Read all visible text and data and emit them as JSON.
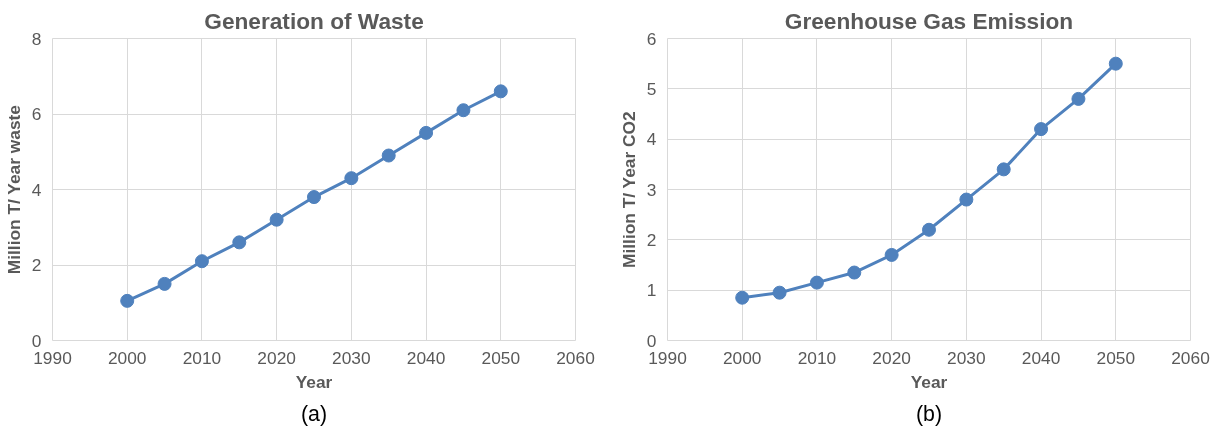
{
  "chart_data": [
    {
      "type": "line",
      "title": "Generation of Waste",
      "xlabel": "Year",
      "ylabel": "Million T/ Year waste",
      "x": [
        2000,
        2005,
        2010,
        2015,
        2020,
        2025,
        2030,
        2035,
        2040,
        2045,
        2050
      ],
      "series": [
        {
          "color": "#4f81bd",
          "values": [
            1.05,
            1.5,
            2.1,
            2.6,
            3.2,
            3.8,
            4.3,
            4.9,
            5.5,
            6.1,
            6.6
          ]
        }
      ],
      "xlim": [
        1990,
        2060
      ],
      "xticks": [
        1990,
        2000,
        2010,
        2020,
        2030,
        2040,
        2050,
        2060
      ],
      "ylim": [
        0,
        8
      ],
      "yticks": [
        0,
        2,
        4,
        6,
        8
      ],
      "grid": true,
      "marker": "circle",
      "line_style": "solid",
      "annotations": [
        "(a)"
      ]
    },
    {
      "type": "line",
      "title": "Greenhouse Gas Emission",
      "xlabel": "Year",
      "ylabel": "Million T/ Year CO2",
      "x": [
        2000,
        2005,
        2010,
        2015,
        2020,
        2025,
        2030,
        2035,
        2040,
        2045,
        2050
      ],
      "series": [
        {
          "color": "#4f81bd",
          "values": [
            0.85,
            0.95,
            1.15,
            1.35,
            1.7,
            2.2,
            2.8,
            3.4,
            4.2,
            4.8,
            5.5
          ]
        }
      ],
      "xlim": [
        1990,
        2060
      ],
      "xticks": [
        1990,
        2000,
        2010,
        2020,
        2030,
        2040,
        2050,
        2060
      ],
      "ylim": [
        0,
        6
      ],
      "yticks": [
        0,
        1,
        2,
        3,
        4,
        5,
        6
      ],
      "grid": true,
      "marker": "circle",
      "line_style": "solid",
      "annotations": [
        "(b)"
      ]
    }
  ]
}
